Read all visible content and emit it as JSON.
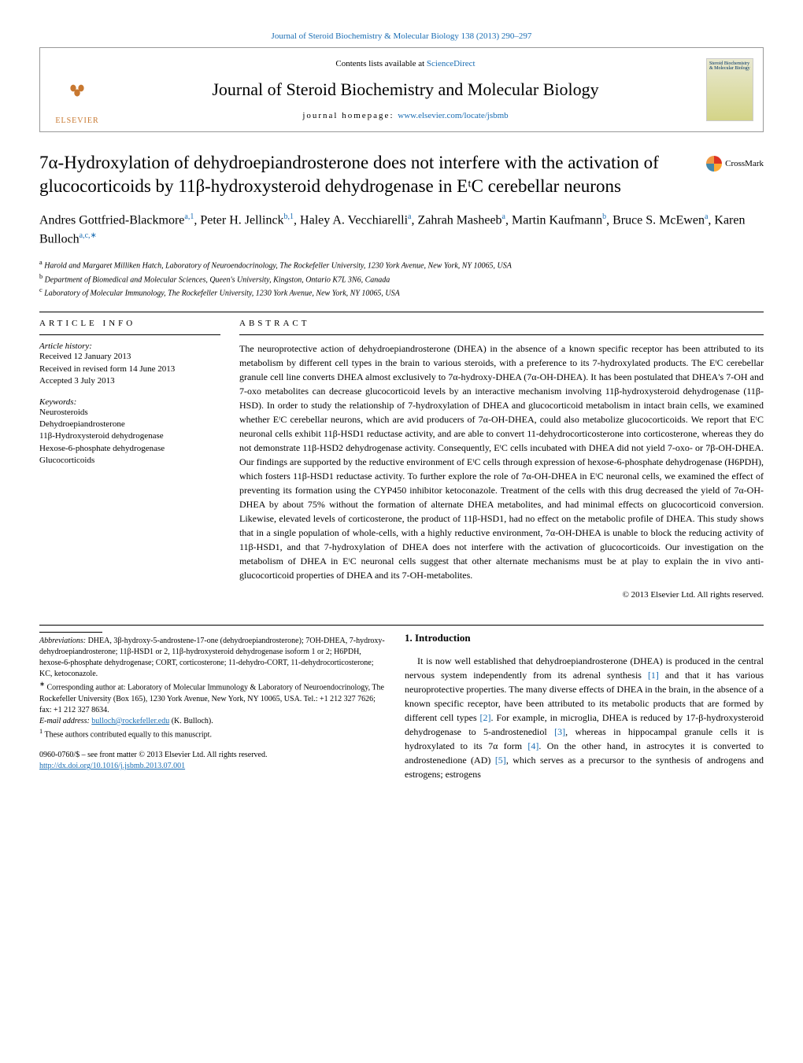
{
  "journal_ref": "Journal of Steroid Biochemistry & Molecular Biology 138 (2013) 290–297",
  "header": {
    "elsevier": "ELSEVIER",
    "contents_prefix": "Contents lists available at ",
    "contents_link": "ScienceDirect",
    "journal_name": "Journal of Steroid Biochemistry and Molecular Biology",
    "homepage_label": "journal homepage: ",
    "homepage_url": "www.elsevier.com/locate/jsbmb",
    "cover_text": "Steroid Biochemistry & Molecular Biology"
  },
  "crossmark": "CrossMark",
  "title": "7α-Hydroxylation of dehydroepiandrosterone does not interfere with the activation of glucocorticoids by 11β-hydroxysteroid dehydrogenase in EᵗC cerebellar neurons",
  "authors_html": "Andres Gottfried-Blackmore<sup>a,1</sup>, Peter H. Jellinck<sup>b,1</sup>, Haley A. Vecchiarelli<sup>a</sup>, Zahrah Masheeb<sup>a</sup>, Martin Kaufmann<sup>b</sup>, Bruce S. McEwen<sup>a</sup>, Karen Bulloch<sup>a,c,∗</sup>",
  "affiliations": [
    {
      "sup": "a",
      "text": "Harold and Margaret Milliken Hatch, Laboratory of Neuroendocrinology, The Rockefeller University, 1230 York Avenue, New York, NY 10065, USA"
    },
    {
      "sup": "b",
      "text": "Department of Biomedical and Molecular Sciences, Queen's University, Kingston, Ontario K7L 3N6, Canada"
    },
    {
      "sup": "c",
      "text": "Laboratory of Molecular Immunology, The Rockefeller University, 1230 York Avenue, New York, NY 10065, USA"
    }
  ],
  "article_info_label": "ARTICLE INFO",
  "abstract_label": "ABSTRACT",
  "history": {
    "label": "Article history:",
    "items": [
      "Received 12 January 2013",
      "Received in revised form 14 June 2013",
      "Accepted 3 July 2013"
    ]
  },
  "keywords": {
    "label": "Keywords:",
    "items": [
      "Neurosteroids",
      "Dehydroepiandrosterone",
      "11β-Hydroxysteroid dehydrogenase",
      "Hexose-6-phosphate dehydrogenase",
      "Glucocorticoids"
    ]
  },
  "abstract": "The neuroprotective action of dehydroepiandrosterone (DHEA) in the absence of a known specific receptor has been attributed to its metabolism by different cell types in the brain to various steroids, with a preference to its 7-hydroxylated products. The EᵗC cerebellar granule cell line converts DHEA almost exclusively to 7α-hydroxy-DHEA (7α-OH-DHEA). It has been postulated that DHEA's 7-OH and 7-oxo metabolites can decrease glucocorticoid levels by an interactive mechanism involving 11β-hydroxysteroid dehydrogenase (11β-HSD). In order to study the relationship of 7-hydroxylation of DHEA and glucocorticoid metabolism in intact brain cells, we examined whether EᵗC cerebellar neurons, which are avid producers of 7α-OH-DHEA, could also metabolize glucocorticoids. We report that EᵗC neuronal cells exhibit 11β-HSD1 reductase activity, and are able to convert 11-dehydrocorticosterone into corticosterone, whereas they do not demonstrate 11β-HSD2 dehydrogenase activity. Consequently, EᵗC cells incubated with DHEA did not yield 7-oxo- or 7β-OH-DHEA. Our findings are supported by the reductive environment of EᵗC cells through expression of hexose-6-phosphate dehydrogenase (H6PDH), which fosters 11β-HSD1 reductase activity. To further explore the role of 7α-OH-DHEA in EᵗC neuronal cells, we examined the effect of preventing its formation using the CYP450 inhibitor ketoconazole. Treatment of the cells with this drug decreased the yield of 7α-OH-DHEA by about 75% without the formation of alternate DHEA metabolites, and had minimal effects on glucocorticoid conversion. Likewise, elevated levels of corticosterone, the product of 11β-HSD1, had no effect on the metabolic profile of DHEA. This study shows that in a single population of whole-cells, with a highly reductive environment, 7α-OH-DHEA is unable to block the reducing activity of 11β-HSD1, and that 7-hydroxylation of DHEA does not interfere with the activation of glucocorticoids. Our investigation on the metabolism of DHEA in EᵗC neuronal cells suggest that other alternate mechanisms must be at play to explain the in vivo anti-glucocorticoid properties of DHEA and its 7-OH-metabolites.",
  "copyright": "© 2013 Elsevier Ltd. All rights reserved.",
  "intro": {
    "heading": "1. Introduction",
    "p1_pre": "It is now well established that dehydroepiandrosterone (DHEA) is produced in the central nervous system independently from its adrenal synthesis ",
    "ref1": "[1]",
    "p1_mid1": " and that it has various neuroprotective properties. The many diverse effects of DHEA in the brain, in the absence of a known specific receptor, have been attributed to its metabolic products that are formed by different cell types ",
    "ref2": "[2]",
    "p1_mid2": ". For example, in microglia, DHEA is reduced by 17-β-hydroxysteroid dehydrogenase to 5-androstenediol ",
    "ref3": "[3]",
    "p1_mid3": ", whereas in hippocampal granule cells it is hydroxylated to its 7α form ",
    "ref4": "[4]",
    "p1_mid4": ". On the other hand, in astrocytes it is converted to androstenedione (AD) ",
    "ref5": "[5]",
    "p1_end": ", which serves as a precursor to the synthesis of androgens and estrogens; estrogens"
  },
  "footnotes": {
    "abbr_label": "Abbreviations:",
    "abbr_text": " DHEA, 3β-hydroxy-5-androstene-17-one (dehydroepiandrosterone); 7OH-DHEA, 7-hydroxy-dehydroepiandrosterone; 11β-HSD1 or 2, 11β-hydroxysteroid dehydrogenase isoform 1 or 2; H6PDH, hexose-6-phosphate dehydrogenase; CORT, corticosterone; 11-dehydro-CORT, 11-dehydrocorticosterone; KC, ketoconazole.",
    "corr_mark": "∗",
    "corr_text": " Corresponding author at: Laboratory of Molecular Immunology & Laboratory of Neuroendocrinology, The Rockefeller University (Box 165), 1230 York Avenue, New York, NY 10065, USA. Tel.: +1 212 327 7626; fax: +1 212 327 8634.",
    "email_label": "E-mail address: ",
    "email": "bulloch@rockefeller.edu",
    "email_suffix": " (K. Bulloch).",
    "equal_mark": "1",
    "equal_text": " These authors contributed equally to this manuscript."
  },
  "doi": {
    "issn": "0960-0760/$ – see front matter © 2013 Elsevier Ltd. All rights reserved.",
    "link": "http://dx.doi.org/10.1016/j.jsbmb.2013.07.001"
  }
}
